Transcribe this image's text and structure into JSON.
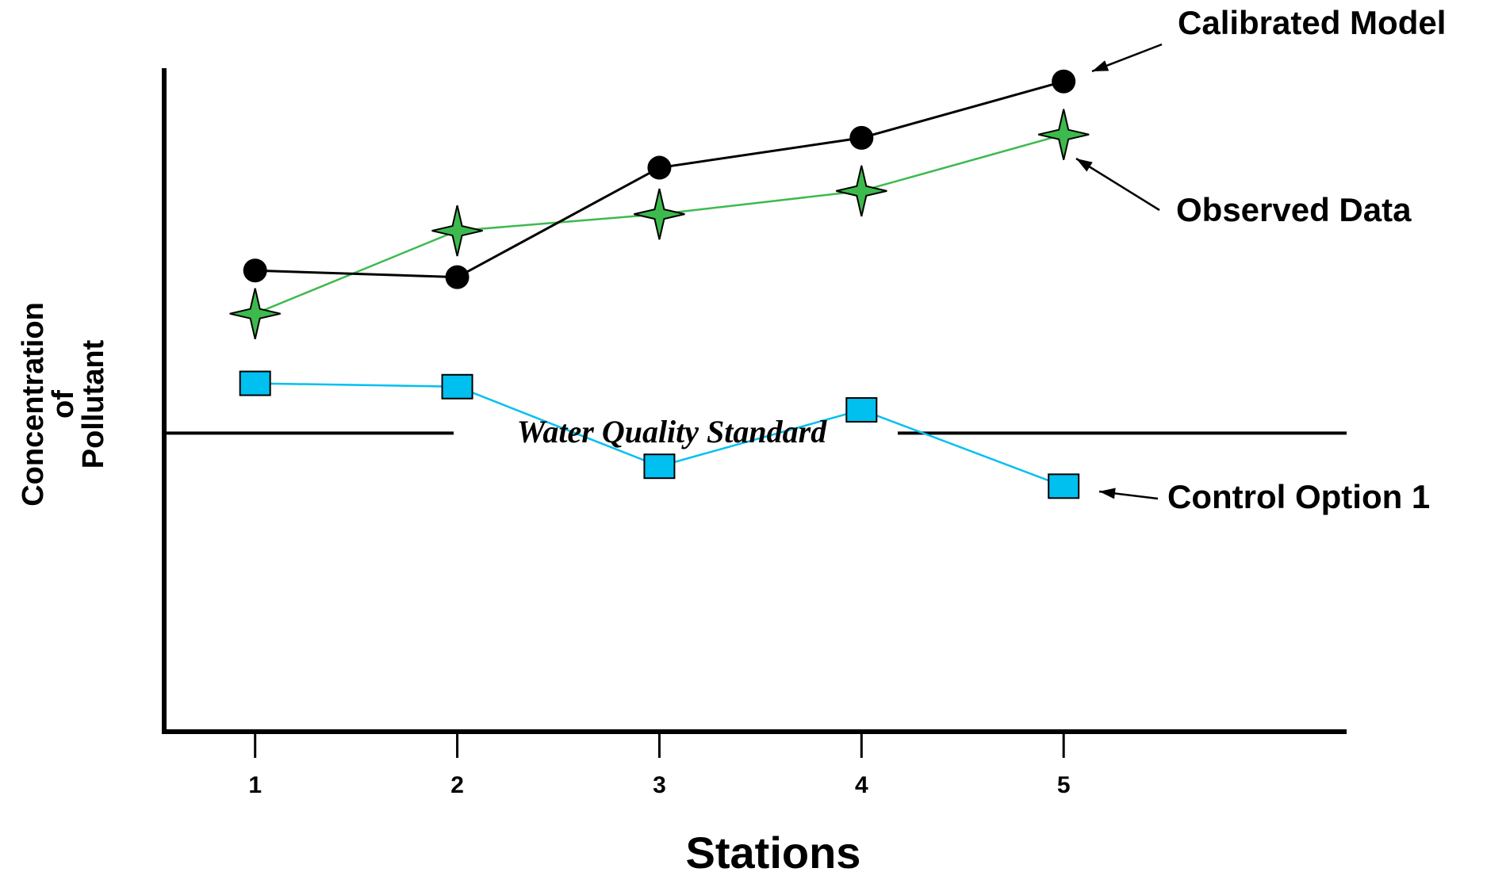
{
  "chart_data": {
    "type": "line",
    "xlabel": "Stations",
    "ylabel_lines": [
      "Concentration",
      "of",
      "Pollutant"
    ],
    "categories": [
      "1",
      "2",
      "3",
      "4",
      "5"
    ],
    "x": [
      1,
      2,
      3,
      4,
      5
    ],
    "xlim": [
      0.55,
      6.4
    ],
    "ylim": [
      0,
      100
    ],
    "grid": false,
    "y_ticks_shown": false,
    "series": [
      {
        "name": "Calibrated Model",
        "values": [
          69.5,
          68.5,
          85,
          89.5,
          98
        ],
        "color": "#000000",
        "marker": "circle"
      },
      {
        "name": "Observed Data",
        "values": [
          63,
          75.5,
          78,
          81.5,
          90
        ],
        "color": "#3dba4e",
        "marker": "star"
      },
      {
        "name": "Control Option 1",
        "values": [
          52.5,
          52,
          40,
          48.5,
          37
        ],
        "color": "#00c0f0",
        "marker": "square"
      }
    ],
    "reference_line": {
      "label": "Water Quality Standard",
      "value": 45
    }
  }
}
